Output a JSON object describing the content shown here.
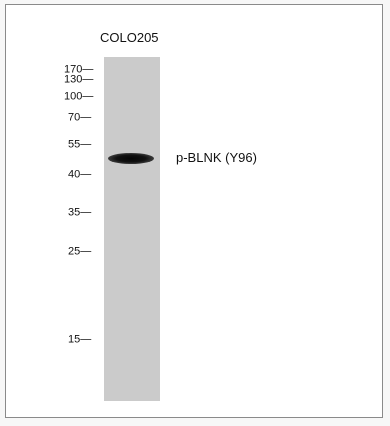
{
  "sample": "COLO205",
  "band_label": "p-BLNK (Y96)",
  "markers": [
    {
      "label": "170—",
      "key": "170"
    },
    {
      "label": "130—",
      "key": "130"
    },
    {
      "label": "100—",
      "key": "100"
    },
    {
      "label": "70—",
      "key": "70"
    },
    {
      "label": "55—",
      "key": "55"
    },
    {
      "label": "40—",
      "key": "40"
    },
    {
      "label": "35—",
      "key": "35"
    },
    {
      "label": "25—",
      "key": "25"
    },
    {
      "label": "15—",
      "key": "15"
    }
  ]
}
